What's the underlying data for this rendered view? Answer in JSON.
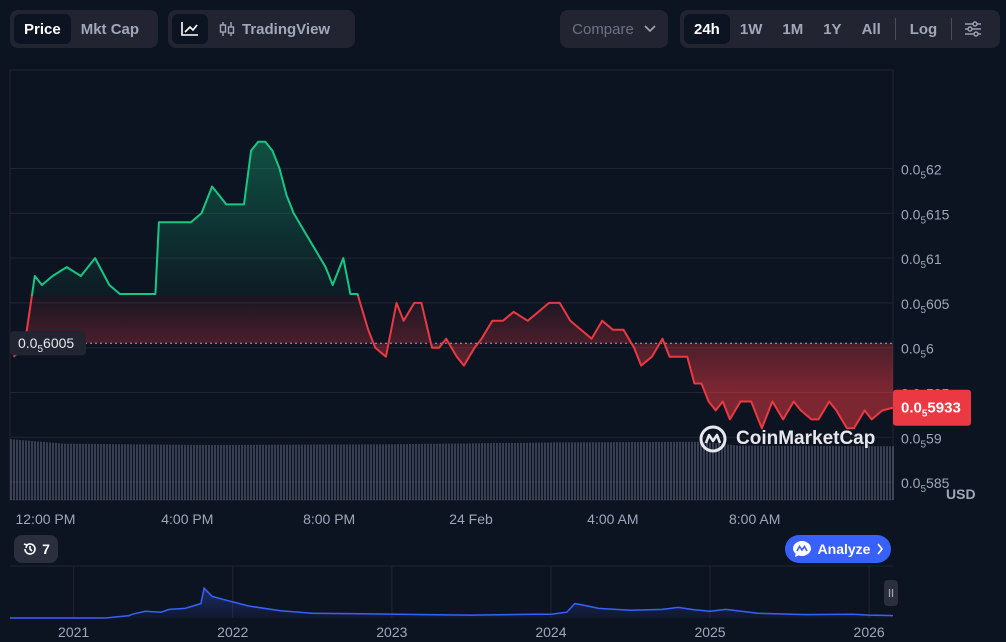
{
  "toolbar": {
    "metric_tabs": [
      {
        "label": "Price",
        "active": true
      },
      {
        "label": "Mkt Cap",
        "active": false
      }
    ],
    "chart_style": {
      "tradingview_label": "TradingView"
    },
    "compare_label": "Compare",
    "ranges": [
      {
        "label": "24h",
        "active": true
      },
      {
        "label": "1W",
        "active": false
      },
      {
        "label": "1M",
        "active": false
      },
      {
        "label": "1Y",
        "active": false
      },
      {
        "label": "All",
        "active": false
      }
    ],
    "log_label": "Log"
  },
  "colors": {
    "background": "#0d1421",
    "up": "#16c784",
    "down": "#ea3943",
    "accent": "#3861fb",
    "volume": "#8a90b0"
  },
  "watermark": "CoinMarketCap",
  "currency_label": "USD",
  "history_count": "7",
  "analyze_label": "Analyze",
  "chart_data": [
    {
      "type": "area",
      "title": "",
      "xlabel": "",
      "ylabel": "",
      "y_tick_labels": [
        {
          "value": 6.2e-06,
          "text": "0.0₅62"
        },
        {
          "value": 6.15e-06,
          "text": "0.0₅615"
        },
        {
          "value": 6.1e-06,
          "text": "0.0₅61"
        },
        {
          "value": 6.05e-06,
          "text": "0.0₅605"
        },
        {
          "value": 6e-06,
          "text": "0.0₅6"
        },
        {
          "value": 5.95e-06,
          "text": "0.0₅595"
        },
        {
          "value": 5.9e-06,
          "text": "0.0₅59"
        },
        {
          "value": 5.85e-06,
          "text": "0.0₅585"
        }
      ],
      "x_tick_labels": [
        {
          "hour": 0,
          "text": "12:00 PM"
        },
        {
          "hour": 4,
          "text": "4:00 PM"
        },
        {
          "hour": 8,
          "text": "8:00 PM"
        },
        {
          "hour": 12,
          "text": "24 Feb"
        },
        {
          "hour": 16,
          "text": "4:00 AM"
        },
        {
          "hour": 20,
          "text": "8:00 AM"
        }
      ],
      "ylim": [
        5.83e-06,
        6.31e-06
      ],
      "xlim": [
        -1,
        23.9
      ],
      "baseline": {
        "value": 6.005e-06,
        "label": "0.0₅6005"
      },
      "current_price": {
        "value": 5.933e-06,
        "label": "0.0₅5933"
      },
      "price_series": {
        "hours": [
          -0.9,
          -0.6,
          -0.3,
          -0.1,
          0.2,
          0.6,
          1.0,
          1.4,
          1.8,
          2.1,
          2.4,
          2.8,
          3.1,
          3.2,
          3.4,
          3.6,
          3.8,
          4.1,
          4.4,
          4.7,
          4.9,
          5.1,
          5.3,
          5.6,
          5.8,
          6.0,
          6.2,
          6.4,
          6.6,
          6.8,
          7.0,
          7.3,
          7.6,
          7.9,
          8.1,
          8.4,
          8.6,
          8.8,
          9.1,
          9.3,
          9.6,
          9.9,
          10.1,
          10.4,
          10.6,
          10.9,
          11.1,
          11.3,
          11.6,
          11.8,
          12.1,
          12.3,
          12.6,
          12.9,
          13.2,
          13.6,
          13.9,
          14.2,
          14.5,
          14.8,
          15.1,
          15.4,
          15.7,
          16.0,
          16.3,
          16.6,
          16.8,
          17.1,
          17.4,
          17.6,
          17.9,
          18.1,
          18.3,
          18.5,
          18.7,
          18.9,
          19.1,
          19.3,
          19.6,
          19.9,
          20.2,
          20.5,
          20.8,
          21.1,
          21.3,
          21.6,
          21.8,
          22.1,
          22.3,
          22.6,
          22.8,
          23.1,
          23.3,
          23.6,
          23.9
        ],
        "values": [
          5.99e-06,
          6e-06,
          6.08e-06,
          6.07e-06,
          6.08e-06,
          6.09e-06,
          6.08e-06,
          6.1e-06,
          6.07e-06,
          6.06e-06,
          6.06e-06,
          6.06e-06,
          6.06e-06,
          6.14e-06,
          6.14e-06,
          6.14e-06,
          6.14e-06,
          6.14e-06,
          6.15e-06,
          6.18e-06,
          6.17e-06,
          6.16e-06,
          6.16e-06,
          6.16e-06,
          6.22e-06,
          6.23e-06,
          6.23e-06,
          6.22e-06,
          6.2e-06,
          6.17e-06,
          6.15e-06,
          6.13e-06,
          6.11e-06,
          6.09e-06,
          6.07e-06,
          6.1e-06,
          6.06e-06,
          6.06e-06,
          6.02e-06,
          6e-06,
          5.99e-06,
          6.05e-06,
          6.03e-06,
          6.05e-06,
          6.05e-06,
          6e-06,
          6e-06,
          6.01e-06,
          5.99e-06,
          5.98e-06,
          6e-06,
          6.01e-06,
          6.03e-06,
          6.03e-06,
          6.04e-06,
          6.03e-06,
          6.04e-06,
          6.05e-06,
          6.05e-06,
          6.03e-06,
          6.02e-06,
          6.01e-06,
          6.03e-06,
          6.02e-06,
          6.02e-06,
          6e-06,
          5.98e-06,
          5.99e-06,
          6.01e-06,
          5.99e-06,
          5.99e-06,
          5.99e-06,
          5.96e-06,
          5.96e-06,
          5.94e-06,
          5.93e-06,
          5.94e-06,
          5.92e-06,
          5.94e-06,
          5.94e-06,
          5.91e-06,
          5.94e-06,
          5.92e-06,
          5.94e-06,
          5.93e-06,
          5.92e-06,
          5.92e-06,
          5.94e-06,
          5.93e-06,
          5.91e-06,
          5.91e-06,
          5.93e-06,
          5.92e-06,
          5.93e-06,
          5.933e-06
        ],
        "up_color": "#16c784",
        "down_color": "#ea3943"
      },
      "volume_series": {
        "profile": [
          {
            "hour": -1,
            "level": 0.95
          },
          {
            "hour": 0.5,
            "level": 0.88
          },
          {
            "hour": 4.5,
            "level": 0.86
          },
          {
            "hour": 9.5,
            "level": 0.87
          },
          {
            "hour": 14.5,
            "level": 0.9
          },
          {
            "hour": 18.5,
            "level": 0.91
          },
          {
            "hour": 19.5,
            "level": 0.85
          },
          {
            "hour": 23.9,
            "level": 0.84
          }
        ]
      }
    },
    {
      "type": "area",
      "title": "",
      "x_tick_labels": [
        "2021",
        "2022",
        "2023",
        "2024",
        "2025",
        "2026"
      ],
      "xlim": [
        2020.6,
        2026.15
      ],
      "ylim": [
        0,
        1
      ],
      "series": {
        "x": [
          2020.6,
          2021.2,
          2021.35,
          2021.37,
          2021.45,
          2021.55,
          2021.6,
          2021.7,
          2021.8,
          2021.82,
          2021.87,
          2021.95,
          2022.1,
          2022.3,
          2022.5,
          2022.8,
          2023.2,
          2023.5,
          2023.9,
          2024.0,
          2024.1,
          2024.15,
          2024.2,
          2024.3,
          2024.5,
          2024.7,
          2024.8,
          2024.9,
          2025.0,
          2025.1,
          2025.3,
          2025.6,
          2025.9,
          2026.0,
          2026.15
        ],
        "values": [
          0.0,
          0.0,
          0.05,
          0.08,
          0.14,
          0.12,
          0.18,
          0.2,
          0.3,
          0.62,
          0.45,
          0.38,
          0.25,
          0.15,
          0.1,
          0.09,
          0.07,
          0.06,
          0.08,
          0.08,
          0.12,
          0.3,
          0.27,
          0.2,
          0.16,
          0.18,
          0.22,
          0.17,
          0.14,
          0.18,
          0.1,
          0.07,
          0.08,
          0.06,
          0.05
        ]
      }
    }
  ]
}
